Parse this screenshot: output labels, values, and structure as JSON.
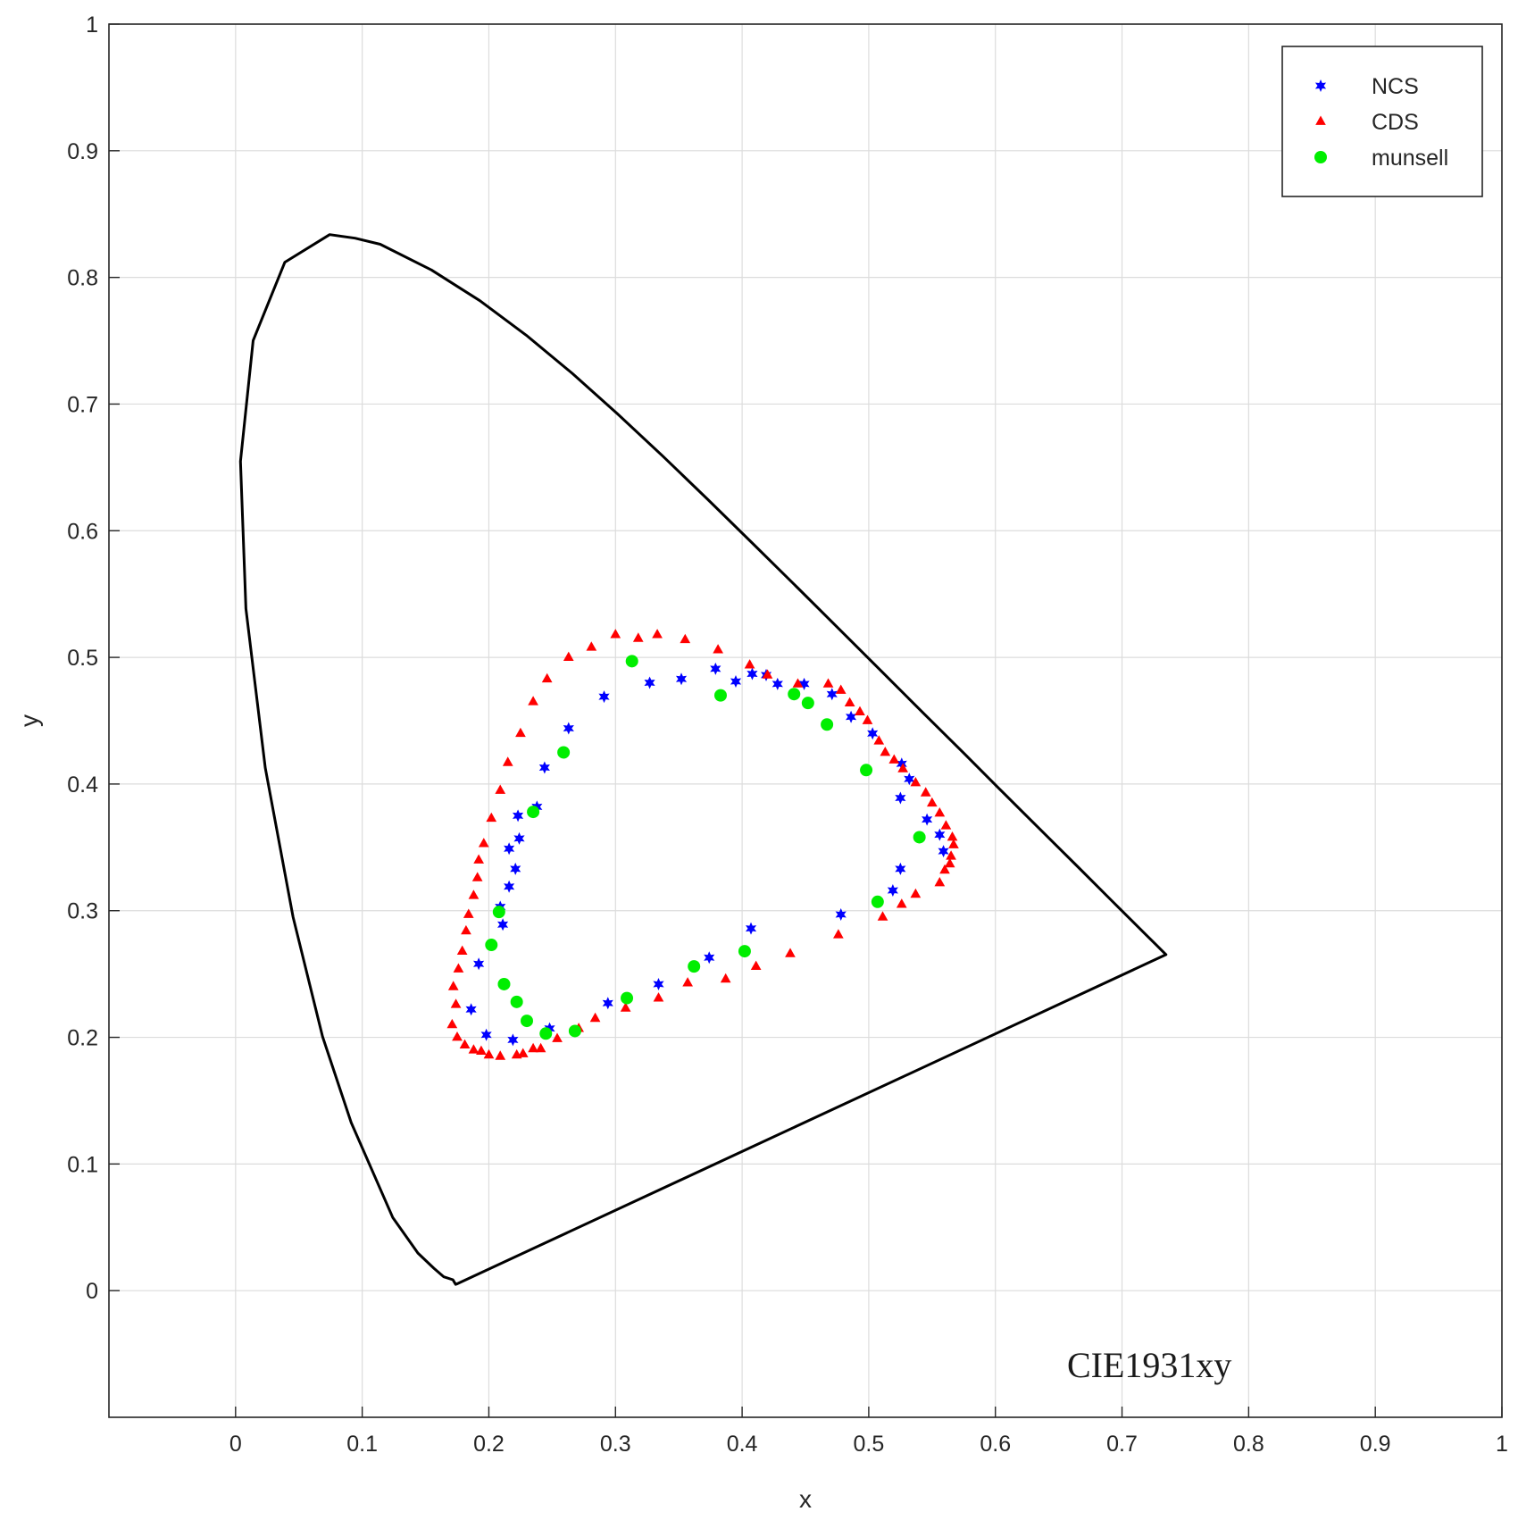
{
  "chart_data": {
    "type": "scatter",
    "title": "",
    "xlabel": "x",
    "ylabel": "y",
    "xlim": [
      -0.1,
      1.0
    ],
    "ylim": [
      -0.1,
      1.0
    ],
    "xticks": [
      "0",
      "0.1",
      "0.2",
      "0.3",
      "0.4",
      "0.5",
      "0.6",
      "0.7",
      "0.8",
      "0.9",
      "1"
    ],
    "yticks": [
      "0",
      "0.1",
      "0.2",
      "0.3",
      "0.4",
      "0.5",
      "0.6",
      "0.7",
      "0.8",
      "0.9",
      "1"
    ],
    "grid": true,
    "legend_position": "top-right",
    "annotation": "CIE1931xy",
    "locus": {
      "color": "#000000",
      "points": [
        [
          0.1741,
          0.005
        ],
        [
          0.1738,
          0.0049
        ],
        [
          0.1716,
          0.0086
        ],
        [
          0.1644,
          0.0109
        ],
        [
          0.1566,
          0.0177
        ],
        [
          0.144,
          0.0297
        ],
        [
          0.1241,
          0.0578
        ],
        [
          0.0913,
          0.1327
        ],
        [
          0.0687,
          0.2007
        ],
        [
          0.0454,
          0.295
        ],
        [
          0.0235,
          0.4127
        ],
        [
          0.0082,
          0.5384
        ],
        [
          0.0039,
          0.6548
        ],
        [
          0.0139,
          0.7502
        ],
        [
          0.0389,
          0.812
        ],
        [
          0.0743,
          0.8338
        ],
        [
          0.0943,
          0.831
        ],
        [
          0.1142,
          0.8262
        ],
        [
          0.1547,
          0.8059
        ],
        [
          0.1929,
          0.7816
        ],
        [
          0.2296,
          0.7543
        ],
        [
          0.2658,
          0.7243
        ],
        [
          0.3016,
          0.6923
        ],
        [
          0.3373,
          0.6589
        ],
        [
          0.3731,
          0.6245
        ],
        [
          0.4087,
          0.5896
        ],
        [
          0.4441,
          0.5547
        ],
        [
          0.4788,
          0.5202
        ],
        [
          0.5125,
          0.4866
        ],
        [
          0.5448,
          0.4544
        ],
        [
          0.5752,
          0.4242
        ],
        [
          0.6029,
          0.3965
        ],
        [
          0.627,
          0.3725
        ],
        [
          0.6482,
          0.3514
        ],
        [
          0.6658,
          0.334
        ],
        [
          0.6915,
          0.3083
        ],
        [
          0.7079,
          0.292
        ],
        [
          0.719,
          0.2809
        ],
        [
          0.726,
          0.274
        ],
        [
          0.7347,
          0.2653
        ],
        [
          0.1741,
          0.005
        ]
      ]
    },
    "series": [
      {
        "name": "NCS",
        "marker": "star",
        "color": "#0000ff",
        "points": [
          [
            0.313,
            0.497
          ],
          [
            0.327,
            0.48
          ],
          [
            0.352,
            0.483
          ],
          [
            0.379,
            0.491
          ],
          [
            0.395,
            0.481
          ],
          [
            0.408,
            0.487
          ],
          [
            0.419,
            0.486
          ],
          [
            0.428,
            0.479
          ],
          [
            0.449,
            0.479
          ],
          [
            0.471,
            0.471
          ],
          [
            0.486,
            0.453
          ],
          [
            0.503,
            0.44
          ],
          [
            0.526,
            0.416
          ],
          [
            0.532,
            0.404
          ],
          [
            0.525,
            0.389
          ],
          [
            0.546,
            0.372
          ],
          [
            0.556,
            0.36
          ],
          [
            0.559,
            0.347
          ],
          [
            0.525,
            0.333
          ],
          [
            0.519,
            0.316
          ],
          [
            0.478,
            0.297
          ],
          [
            0.407,
            0.286
          ],
          [
            0.374,
            0.263
          ],
          [
            0.334,
            0.242
          ],
          [
            0.294,
            0.227
          ],
          [
            0.248,
            0.207
          ],
          [
            0.219,
            0.198
          ],
          [
            0.198,
            0.202
          ],
          [
            0.186,
            0.222
          ],
          [
            0.192,
            0.258
          ],
          [
            0.211,
            0.289
          ],
          [
            0.209,
            0.303
          ],
          [
            0.216,
            0.319
          ],
          [
            0.221,
            0.333
          ],
          [
            0.216,
            0.349
          ],
          [
            0.224,
            0.357
          ],
          [
            0.223,
            0.375
          ],
          [
            0.238,
            0.382
          ],
          [
            0.244,
            0.413
          ],
          [
            0.263,
            0.444
          ],
          [
            0.291,
            0.469
          ]
        ]
      },
      {
        "name": "CDS",
        "marker": "triangle",
        "color": "#ff0000",
        "points": [
          [
            0.3,
            0.518
          ],
          [
            0.318,
            0.515
          ],
          [
            0.333,
            0.518
          ],
          [
            0.355,
            0.514
          ],
          [
            0.381,
            0.506
          ],
          [
            0.406,
            0.494
          ],
          [
            0.42,
            0.486
          ],
          [
            0.444,
            0.479
          ],
          [
            0.468,
            0.479
          ],
          [
            0.478,
            0.474
          ],
          [
            0.485,
            0.464
          ],
          [
            0.493,
            0.457
          ],
          [
            0.499,
            0.45
          ],
          [
            0.508,
            0.434
          ],
          [
            0.513,
            0.425
          ],
          [
            0.52,
            0.419
          ],
          [
            0.527,
            0.412
          ],
          [
            0.537,
            0.401
          ],
          [
            0.545,
            0.393
          ],
          [
            0.55,
            0.385
          ],
          [
            0.556,
            0.377
          ],
          [
            0.561,
            0.367
          ],
          [
            0.566,
            0.358
          ],
          [
            0.567,
            0.352
          ],
          [
            0.565,
            0.343
          ],
          [
            0.564,
            0.337
          ],
          [
            0.56,
            0.332
          ],
          [
            0.556,
            0.322
          ],
          [
            0.537,
            0.313
          ],
          [
            0.526,
            0.305
          ],
          [
            0.511,
            0.295
          ],
          [
            0.476,
            0.281
          ],
          [
            0.438,
            0.266
          ],
          [
            0.411,
            0.256
          ],
          [
            0.387,
            0.246
          ],
          [
            0.357,
            0.243
          ],
          [
            0.334,
            0.231
          ],
          [
            0.308,
            0.223
          ],
          [
            0.284,
            0.215
          ],
          [
            0.271,
            0.207
          ],
          [
            0.254,
            0.199
          ],
          [
            0.241,
            0.191
          ],
          [
            0.235,
            0.191
          ],
          [
            0.227,
            0.187
          ],
          [
            0.222,
            0.186
          ],
          [
            0.209,
            0.185
          ],
          [
            0.2,
            0.186
          ],
          [
            0.194,
            0.189
          ],
          [
            0.188,
            0.19
          ],
          [
            0.181,
            0.194
          ],
          [
            0.175,
            0.2
          ],
          [
            0.171,
            0.21
          ],
          [
            0.174,
            0.226
          ],
          [
            0.172,
            0.24
          ],
          [
            0.176,
            0.254
          ],
          [
            0.179,
            0.268
          ],
          [
            0.182,
            0.284
          ],
          [
            0.184,
            0.297
          ],
          [
            0.188,
            0.312
          ],
          [
            0.191,
            0.326
          ],
          [
            0.192,
            0.34
          ],
          [
            0.196,
            0.353
          ],
          [
            0.202,
            0.373
          ],
          [
            0.209,
            0.395
          ],
          [
            0.215,
            0.417
          ],
          [
            0.225,
            0.44
          ],
          [
            0.235,
            0.465
          ],
          [
            0.246,
            0.483
          ],
          [
            0.263,
            0.5
          ],
          [
            0.281,
            0.508
          ]
        ]
      },
      {
        "name": "munsell",
        "marker": "circle",
        "color": "#00ee00",
        "points": [
          [
            0.313,
            0.497
          ],
          [
            0.383,
            0.47
          ],
          [
            0.441,
            0.471
          ],
          [
            0.452,
            0.464
          ],
          [
            0.467,
            0.447
          ],
          [
            0.498,
            0.411
          ],
          [
            0.54,
            0.358
          ],
          [
            0.507,
            0.307
          ],
          [
            0.402,
            0.268
          ],
          [
            0.362,
            0.256
          ],
          [
            0.309,
            0.231
          ],
          [
            0.268,
            0.205
          ],
          [
            0.245,
            0.203
          ],
          [
            0.23,
            0.213
          ],
          [
            0.222,
            0.228
          ],
          [
            0.212,
            0.242
          ],
          [
            0.202,
            0.273
          ],
          [
            0.208,
            0.299
          ],
          [
            0.235,
            0.378
          ],
          [
            0.259,
            0.425
          ]
        ]
      }
    ]
  }
}
